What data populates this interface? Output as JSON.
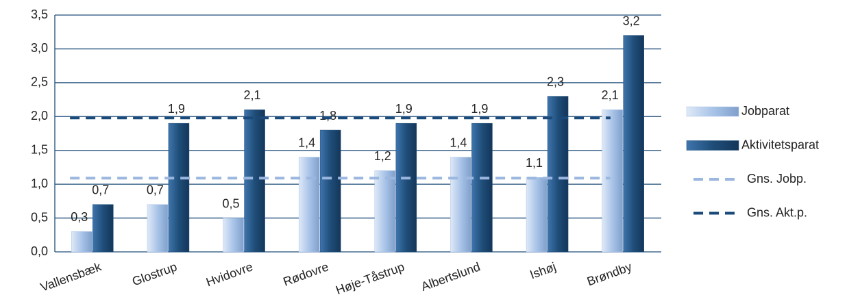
{
  "chart_data": {
    "type": "bar",
    "categories": [
      "Vallensbæk",
      "Glostrup",
      "Hvidovre",
      "Rødovre",
      "Høje-Tåstrup",
      "Albertslund",
      "Ishøj",
      "Brøndby"
    ],
    "series": [
      {
        "name": "Jobparat",
        "color": "#a9c4e8",
        "values": [
          0.3,
          0.7,
          0.5,
          1.4,
          1.2,
          1.4,
          1.1,
          2.1
        ],
        "value_labels": [
          "0,3",
          "0,7",
          "0,5",
          "1,4",
          "1,2",
          "1,4",
          "1,1",
          "2,1"
        ]
      },
      {
        "name": "Aktivitetsparat",
        "color": "#1f4e79",
        "values": [
          0.7,
          1.9,
          2.1,
          1.8,
          1.9,
          1.9,
          2.3,
          3.2
        ],
        "value_labels": [
          "0,7",
          "1,9",
          "2,1",
          "1,8",
          "1,9",
          "1,9",
          "2,3",
          "3,2"
        ]
      },
      {
        "name": "Gns. Jobp.",
        "type": "line",
        "dashed": true,
        "color": "#9bb7df",
        "values": [
          1.09,
          1.09,
          1.09,
          1.09,
          1.09,
          1.09,
          1.09,
          1.09
        ]
      },
      {
        "name": "Gns. Akt.p.",
        "type": "line",
        "dashed": true,
        "color": "#1a4a7a",
        "values": [
          1.98,
          1.98,
          1.98,
          1.98,
          1.98,
          1.98,
          1.98,
          1.98
        ]
      }
    ],
    "ylim": [
      0,
      3.5
    ],
    "yticks": [
      {
        "value": 0,
        "label": "0,0"
      },
      {
        "value": 0.5,
        "label": "0,5"
      },
      {
        "value": 1,
        "label": "1,0"
      },
      {
        "value": 1.5,
        "label": "1,5"
      },
      {
        "value": 2,
        "label": "2,0"
      },
      {
        "value": 2.5,
        "label": "2,5"
      },
      {
        "value": 3,
        "label": "3,0"
      },
      {
        "value": 3.5,
        "label": "3,5"
      }
    ],
    "grid": true,
    "legend": "right"
  }
}
